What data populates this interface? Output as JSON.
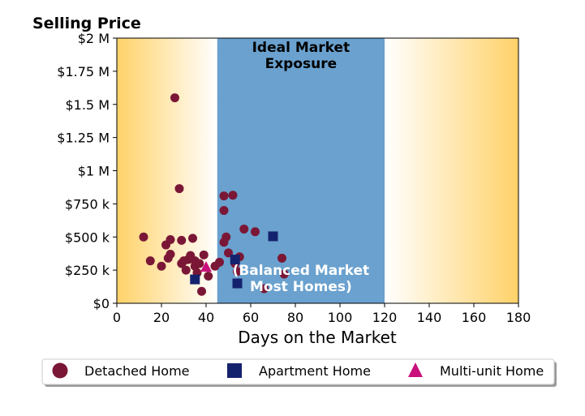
{
  "chart_data": {
    "type": "scatter",
    "title": "Selling Price",
    "xlabel": "Days on the Market",
    "ylabel": "",
    "xlim": [
      0,
      180
    ],
    "ylim": [
      0,
      2000000
    ],
    "x_ticks": [
      0,
      20,
      40,
      60,
      80,
      100,
      120,
      140,
      160,
      180
    ],
    "x_tick_labels": [
      "0",
      "20",
      "40",
      "60",
      "80",
      "100",
      "120",
      "140",
      "160",
      "180"
    ],
    "y_ticks": [
      0,
      250000,
      500000,
      750000,
      1000000,
      1250000,
      1500000,
      1750000,
      2000000
    ],
    "y_tick_labels": [
      "$0",
      "$250 k",
      "$500 k",
      "$750 k",
      "$1 M",
      "$1.25 M",
      "$1.5 M",
      "$1.75 M",
      "$2 M"
    ],
    "band": {
      "x_start": 45,
      "x_end": 120,
      "label_top": [
        "Ideal Market",
        "Exposure"
      ],
      "label_bottom": [
        "(Balanced Market",
        "Most Homes)"
      ],
      "color": "#6aa1ce"
    },
    "gradient_color": "#ffd269",
    "legend_position": "bottom",
    "series": [
      {
        "name": "Detached Home",
        "marker": "circle",
        "color": "#7b1736",
        "points": [
          [
            26,
            1550000
          ],
          [
            28,
            865000
          ],
          [
            12,
            500000
          ],
          [
            15,
            320000
          ],
          [
            20,
            280000
          ],
          [
            22,
            440000
          ],
          [
            23,
            340000
          ],
          [
            24,
            370000
          ],
          [
            24,
            480000
          ],
          [
            29,
            475000
          ],
          [
            29,
            300000
          ],
          [
            30,
            320000
          ],
          [
            31,
            250000
          ],
          [
            32,
            330000
          ],
          [
            33,
            360000
          ],
          [
            34,
            490000
          ],
          [
            35,
            320000
          ],
          [
            35,
            280000
          ],
          [
            36,
            230000
          ],
          [
            37,
            300000
          ],
          [
            38,
            90000
          ],
          [
            39,
            365000
          ],
          [
            41,
            205000
          ],
          [
            44,
            280000
          ],
          [
            46,
            310000
          ],
          [
            48,
            810000
          ],
          [
            48,
            700000
          ],
          [
            48,
            460000
          ],
          [
            49,
            500000
          ],
          [
            50,
            380000
          ],
          [
            52,
            815000
          ],
          [
            53,
            300000
          ],
          [
            54,
            240000
          ],
          [
            55,
            350000
          ],
          [
            57,
            560000
          ],
          [
            62,
            540000
          ],
          [
            66,
            110000
          ],
          [
            74,
            340000
          ],
          [
            75,
            220000
          ]
        ]
      },
      {
        "name": "Apartment Home",
        "marker": "square",
        "color": "#14226e",
        "points": [
          [
            35,
            180000
          ],
          [
            53,
            330000
          ],
          [
            54,
            150000
          ],
          [
            70,
            505000
          ]
        ]
      },
      {
        "name": "Multi-unit Home",
        "marker": "triangle",
        "color": "#c8117c",
        "points": [
          [
            40,
            275000
          ]
        ]
      }
    ]
  }
}
